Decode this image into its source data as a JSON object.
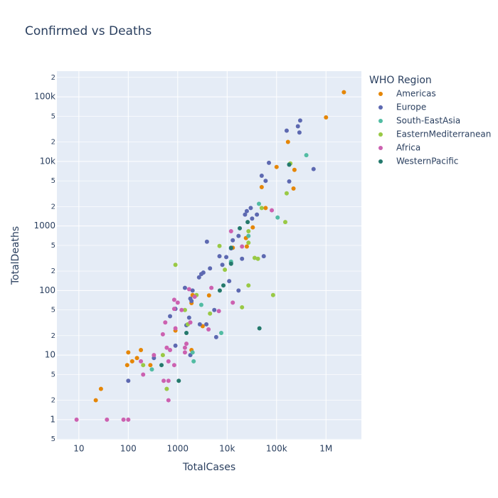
{
  "chart_data": {
    "type": "scatter",
    "title": "Confirmed vs Deaths",
    "x_label": "TotalCases",
    "y_label": "TotalDeaths",
    "legend_title": "WHO Region",
    "log_x": true,
    "log_y": true,
    "grid": true,
    "xlim": [
      3.6,
      5200000
    ],
    "ylim": [
      0.49,
      250000
    ],
    "xticks": [
      10,
      100,
      1000,
      {
        "value": 10000,
        "label": "10k"
      },
      {
        "value": 100000,
        "label": "100k"
      },
      {
        "value": 1000000,
        "label": "1M"
      }
    ],
    "yticks": [
      {
        "value": 0.5,
        "label": "5"
      },
      1,
      2,
      {
        "value": 5,
        "label": "5"
      },
      10,
      {
        "value": 20,
        "label": "2"
      },
      {
        "value": 50,
        "label": "5"
      },
      100,
      {
        "value": 200,
        "label": "2"
      },
      {
        "value": 500,
        "label": "5"
      },
      1000,
      {
        "value": 2000,
        "label": "2"
      },
      {
        "value": 5000,
        "label": "5"
      },
      {
        "value": 10000,
        "label": "10k"
      },
      {
        "value": 20000,
        "label": "2"
      },
      {
        "value": 50000,
        "label": "5"
      },
      {
        "value": 100000,
        "label": "100k"
      },
      {
        "value": 200000,
        "label": "2"
      }
    ],
    "series": [
      {
        "name": "Americas",
        "color": "#E58606",
        "x": [
          2300000,
          1000000,
          170000,
          100000,
          230000,
          50000,
          220000,
          60000,
          33000,
          24000,
          25000,
          2000,
          1900,
          900,
          1900,
          100,
          180,
          150,
          120,
          280,
          95,
          28,
          22,
          4300,
          3200,
          13000
        ],
        "y": [
          118000,
          48000,
          20000,
          8200,
          7400,
          4000,
          3800,
          1900,
          950,
          650,
          480,
          85,
          64,
          24,
          12,
          11,
          12,
          9,
          8,
          7,
          7,
          3,
          2,
          84,
          28,
          460
        ]
      },
      {
        "name": "Europe",
        "color": "#5D69B1",
        "x": [
          300000,
          270000,
          160000,
          290000,
          70000,
          560000,
          180000,
          50000,
          60000,
          30000,
          25000,
          40000,
          23000,
          32000,
          17000,
          55000,
          7000,
          13000,
          3900,
          12000,
          9600,
          20000,
          12000,
          8000,
          4500,
          3300,
          3000,
          2700,
          11000,
          17000,
          2000,
          1400,
          1800,
          1900,
          5500,
          700,
          900,
          3800,
          2800,
          1700,
          1500,
          6000,
          1800,
          900,
          330,
          100
        ],
        "y": [
          43000,
          35000,
          30000,
          28000,
          9500,
          7600,
          4900,
          6000,
          5000,
          1900,
          1700,
          1500,
          1500,
          1300,
          700,
          340,
          340,
          600,
          570,
          450,
          330,
          310,
          270,
          250,
          220,
          190,
          180,
          160,
          140,
          100,
          100,
          110,
          75,
          69,
          50,
          40,
          52,
          30,
          30,
          38,
          29,
          19,
          10,
          14,
          9,
          4
        ]
      },
      {
        "name": "South-EastAsia",
        "color": "#52BCA3",
        "x": [
          400000,
          180000,
          44000,
          105000,
          27000,
          12000,
          7600,
          2000,
          2100,
          300,
          3000
        ],
        "y": [
          12500,
          9000,
          2200,
          1350,
          700,
          280,
          22,
          11,
          8,
          6,
          60
        ]
      },
      {
        "name": "EasternMediterranean",
        "color": "#99C945",
        "x": [
          190000,
          160000,
          50000,
          150000,
          27000,
          27000,
          7000,
          36000,
          42000,
          9000,
          27000,
          85000,
          900,
          2400,
          1400,
          4500,
          20000,
          1600,
          500,
          200,
          600
        ],
        "y": [
          9300,
          3200,
          1900,
          1150,
          830,
          550,
          490,
          320,
          310,
          210,
          120,
          85,
          250,
          85,
          50,
          44,
          55,
          30,
          10,
          7,
          3
        ]
      },
      {
        "name": "Africa",
        "color": "#CC61B0",
        "x": [
          12000,
          80000,
          20000,
          4800,
          6800,
          13000,
          2200,
          1700,
          1200,
          4200,
          1800,
          1000,
          850,
          850,
          900,
          1500,
          1400,
          1400,
          700,
          600,
          650,
          850,
          500,
          560,
          650,
          520,
          650,
          330,
          200,
          180,
          9,
          37,
          80,
          100
        ],
        "y": [
          830,
          1750,
          480,
          110,
          48,
          65,
          80,
          105,
          50,
          25,
          32,
          65,
          72,
          52,
          26,
          15,
          13,
          11,
          12,
          13,
          8,
          7,
          21,
          32,
          4,
          4,
          2,
          10,
          5,
          8,
          1,
          1,
          1,
          1
        ]
      },
      {
        "name": "WesternPacific",
        "color": "#24796C",
        "x": [
          180000,
          26000,
          18000,
          12000,
          12000,
          8400,
          7100,
          1500,
          1050,
          45000,
          470
        ],
        "y": [
          8900,
          1150,
          920,
          460,
          260,
          120,
          100,
          22,
          4,
          26,
          7
        ]
      }
    ]
  }
}
